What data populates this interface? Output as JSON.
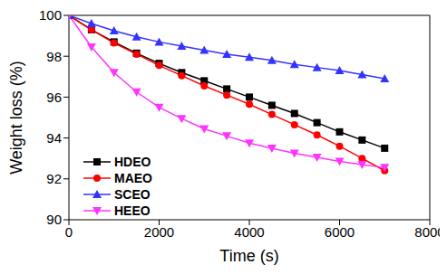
{
  "chart_data": {
    "type": "line",
    "x_label": "Time (s)",
    "y_label": "Weight loss (%)",
    "x": [
      0,
      500,
      1000,
      1500,
      2000,
      2500,
      3000,
      3500,
      4000,
      4500,
      5000,
      5500,
      6000,
      6500,
      7000
    ],
    "xlim": [
      0,
      8000
    ],
    "xticks": [
      0,
      2000,
      4000,
      6000,
      8000
    ],
    "ylim": [
      90,
      100
    ],
    "yticks": [
      90,
      92,
      94,
      96,
      98,
      100
    ],
    "grid": false,
    "legend": "lower left",
    "series": [
      {
        "name": "HDEO",
        "color": "#000000",
        "marker": "square",
        "values": [
          100,
          99.3,
          98.7,
          98.15,
          97.65,
          97.2,
          96.8,
          96.4,
          96.0,
          95.6,
          95.2,
          94.75,
          94.3,
          93.9,
          93.5
        ]
      },
      {
        "name": "MAEO",
        "color": "#ff0000",
        "marker": "circle",
        "values": [
          100,
          99.3,
          98.65,
          98.1,
          97.55,
          97.05,
          96.55,
          96.1,
          95.65,
          95.15,
          94.65,
          94.15,
          93.6,
          93.0,
          92.4
        ]
      },
      {
        "name": "SCEO",
        "color": "#3333ff",
        "marker": "triangle",
        "values": [
          100,
          99.6,
          99.25,
          98.95,
          98.7,
          98.5,
          98.3,
          98.1,
          97.95,
          97.8,
          97.6,
          97.45,
          97.3,
          97.1,
          96.9
        ]
      },
      {
        "name": "HEEO",
        "color": "#ff33ff",
        "marker": "triangle-down",
        "values": [
          100,
          98.45,
          97.2,
          96.25,
          95.5,
          94.95,
          94.45,
          94.1,
          93.75,
          93.5,
          93.25,
          93.05,
          92.85,
          92.7,
          92.55
        ]
      }
    ]
  }
}
